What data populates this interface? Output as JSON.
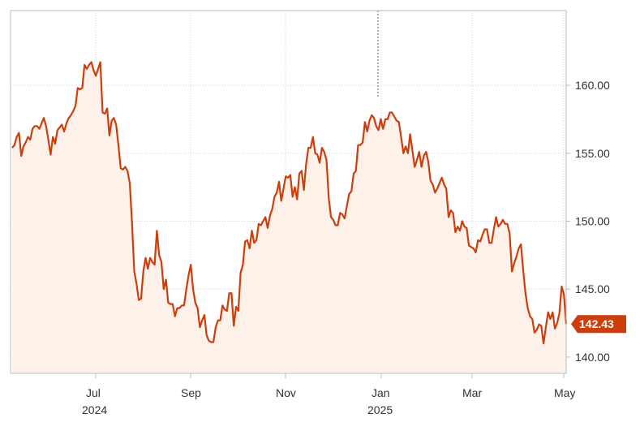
{
  "chart_data": {
    "type": "area",
    "colors": {
      "line": "#cc3e0c",
      "fill": "#fdf1ea",
      "badge": "#cc3e0c",
      "grid": "#d0d0d0",
      "plot_border": "#bbbbbb"
    },
    "grid": true,
    "ylim": [
      138.8,
      165.5
    ],
    "y_ticks": [
      {
        "value": 140,
        "label": "140.00"
      },
      {
        "value": 145,
        "label": "145.00"
      },
      {
        "value": 150,
        "label": "150.00"
      },
      {
        "value": 155,
        "label": "155.00"
      },
      {
        "value": 160,
        "label": "160.00"
      }
    ],
    "x_ticks": [
      {
        "label": "Jul",
        "sub": "2024"
      },
      {
        "label": "Sep",
        "sub": ""
      },
      {
        "label": "Nov",
        "sub": ""
      },
      {
        "label": "Jan",
        "sub": "2025"
      },
      {
        "label": "Mar",
        "sub": ""
      },
      {
        "label": "May",
        "sub": ""
      }
    ],
    "last_value": {
      "value": 142.43,
      "label": "142.43"
    },
    "series": [
      {
        "values": [
          155.4,
          155.6,
          156.2,
          156.5,
          154.8,
          155.5,
          155.8,
          156.2,
          156.0,
          156.8,
          157.0,
          157.0,
          156.8,
          157.2,
          157.6,
          157.0,
          156.0,
          154.9,
          156.2,
          155.7,
          156.7,
          156.9,
          157.1,
          156.6,
          157.2,
          157.6,
          157.8,
          158.1,
          158.5,
          159.8,
          159.7,
          159.8,
          161.5,
          161.2,
          161.5,
          161.7,
          161.1,
          160.7,
          161.2,
          161.7,
          158.0,
          157.9,
          158.3,
          156.3,
          157.4,
          157.6,
          157.1,
          155.6,
          153.9,
          153.8,
          154.0,
          153.7,
          152.8,
          149.8,
          146.3,
          145.4,
          144.2,
          144.3,
          146.3,
          147.3,
          146.5,
          147.3,
          147.0,
          146.8,
          149.3,
          147.5,
          147.0,
          145.0,
          145.7,
          144.0,
          143.9,
          143.9,
          143.0,
          143.6,
          143.6,
          143.8,
          143.8,
          145.0,
          146.0,
          146.8,
          145.0,
          144.0,
          143.6,
          142.2,
          142.7,
          143.1,
          141.6,
          141.2,
          141.1,
          141.1,
          142.2,
          142.7,
          142.7,
          143.8,
          143.5,
          143.4,
          144.7,
          144.7,
          142.3,
          143.7,
          143.4,
          146.2,
          146.8,
          148.5,
          148.6,
          148.0,
          149.3,
          148.4,
          148.6,
          149.8,
          149.7,
          150.0,
          150.3,
          149.5,
          150.4,
          150.9,
          151.8,
          152.1,
          152.9,
          151.5,
          152.4,
          153.3,
          153.2,
          153.4,
          151.8,
          152.5,
          151.6,
          153.5,
          153.7,
          152.3,
          154.2,
          155.4,
          155.4,
          156.2,
          155.0,
          154.9,
          154.3,
          155.4,
          155.1,
          154.5,
          151.7,
          150.3,
          150.1,
          149.7,
          149.7,
          150.6,
          150.5,
          150.2,
          151.1,
          152.0,
          152.2,
          153.5,
          153.7,
          155.6,
          155.6,
          155.8,
          157.3,
          156.6,
          157.4,
          157.8,
          157.6,
          157.0,
          156.7,
          157.5,
          156.8,
          157.5,
          157.5,
          158.0,
          158.0,
          157.7,
          157.4,
          157.3,
          156.2,
          155.0,
          155.5,
          155.0,
          156.4,
          155.2,
          154.0,
          154.5,
          155.1,
          154.0,
          154.8,
          155.1,
          154.4,
          153.0,
          152.7,
          152.1,
          152.4,
          152.8,
          153.2,
          152.7,
          152.4,
          150.3,
          150.8,
          150.6,
          149.2,
          149.6,
          149.3,
          150.0,
          149.6,
          149.5,
          148.2,
          148.1,
          148.0,
          147.7,
          148.6,
          148.5,
          149.0,
          149.4,
          149.4,
          148.4,
          148.4,
          149.4,
          150.3,
          149.6,
          149.8,
          150.1,
          149.8,
          149.8,
          149.1,
          146.3,
          146.9,
          147.4,
          148.0,
          148.3,
          146.4,
          144.7,
          143.6,
          143.0,
          142.8,
          141.8,
          142.0,
          142.4,
          142.3,
          141.0,
          142.2,
          143.3,
          142.8,
          143.3,
          142.1,
          142.5,
          143.2,
          145.2,
          144.6,
          142.43
        ]
      }
    ]
  }
}
